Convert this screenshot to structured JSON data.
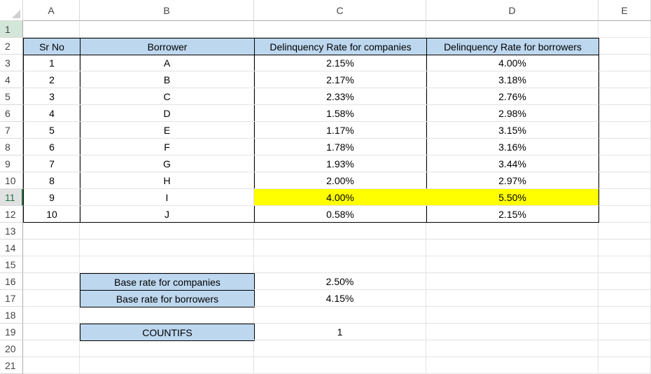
{
  "sheet": {
    "columns": [
      "A",
      "B",
      "C",
      "D",
      "E"
    ],
    "rows": [
      "1",
      "2",
      "3",
      "4",
      "5",
      "6",
      "7",
      "8",
      "9",
      "10",
      "11",
      "12",
      "13",
      "14",
      "15",
      "16",
      "17",
      "18",
      "19",
      "20",
      "21"
    ],
    "selected_row": "11"
  },
  "table": {
    "headers": {
      "sr": "Sr No",
      "borrower": "Borrower",
      "rate_companies": "Delinquency Rate for companies",
      "rate_borrowers": "Delinquency Rate for borrowers"
    },
    "rows": [
      {
        "sr": "1",
        "borrower": "A",
        "rc": "2.15%",
        "rb": "4.00%"
      },
      {
        "sr": "2",
        "borrower": "B",
        "rc": "2.17%",
        "rb": "3.18%"
      },
      {
        "sr": "3",
        "borrower": "C",
        "rc": "2.33%",
        "rb": "2.76%"
      },
      {
        "sr": "4",
        "borrower": "D",
        "rc": "1.58%",
        "rb": "2.98%"
      },
      {
        "sr": "5",
        "borrower": "E",
        "rc": "1.17%",
        "rb": "3.15%"
      },
      {
        "sr": "6",
        "borrower": "F",
        "rc": "1.78%",
        "rb": "3.16%"
      },
      {
        "sr": "7",
        "borrower": "G",
        "rc": "1.93%",
        "rb": "3.44%"
      },
      {
        "sr": "8",
        "borrower": "H",
        "rc": "2.00%",
        "rb": "2.97%"
      },
      {
        "sr": "9",
        "borrower": "I",
        "rc": "4.00%",
        "rb": "5.50%"
      },
      {
        "sr": "10",
        "borrower": "J",
        "rc": "0.58%",
        "rb": "2.15%"
      }
    ],
    "highlight_row_index": 8,
    "highlight_color": "#ffff00"
  },
  "summary": {
    "base_companies_label": "Base rate for companies",
    "base_companies_value": "2.50%",
    "base_borrowers_label": "Base rate for borrowers",
    "base_borrowers_value": "4.15%",
    "countifs_label": "COUNTIFS",
    "countifs_value": "1"
  },
  "colors": {
    "header_fill": "#bdd7ee",
    "selection_green": "#217346"
  }
}
